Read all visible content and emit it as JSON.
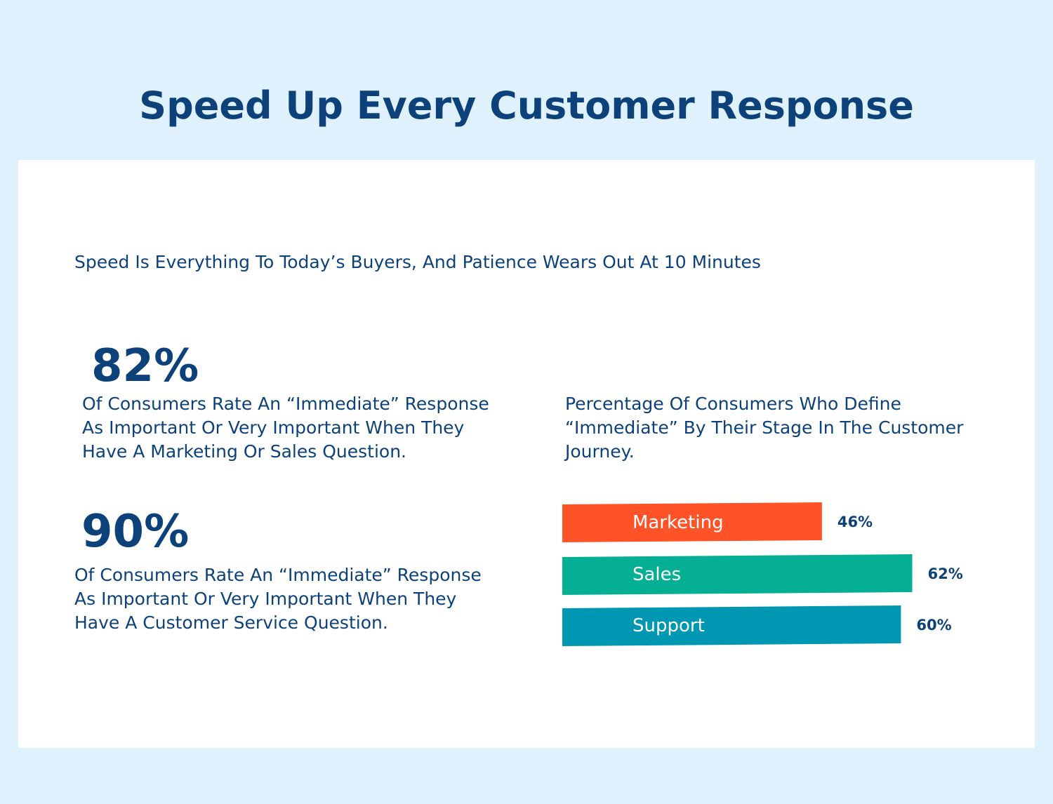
{
  "title": "Speed Up Every Customer Response",
  "intro": "Speed Is Everything To Today’s Buyers, And Patience Wears Out At 10 Minutes",
  "stats": [
    {
      "value": "82%",
      "text": "Of Consumers Rate An “Immediate” Response As Important Or Very Important When They Have A Marketing Or Sales Question."
    },
    {
      "value": "90%",
      "text": "Of Consumers Rate An “Immediate” Response As Important Or Very Important When They Have A Customer Service Question."
    }
  ],
  "colors": {
    "page_background": "#dff1fd",
    "card_background": "#ffffff",
    "text": "#0d4179",
    "bar_label": "#ffffff"
  },
  "chart_data": {
    "type": "bar",
    "orientation": "horizontal",
    "title": "Percentage Of Consumers Who Define “Immediate” By Their Stage In The Customer Journey.",
    "categories": [
      "Marketing",
      "Sales",
      "Support"
    ],
    "values": [
      46,
      62,
      60
    ],
    "value_labels": [
      "46%",
      "62%",
      "60%"
    ],
    "unit": "%",
    "bar_colors": [
      "#ff5227",
      "#05af93",
      "#0097b2"
    ],
    "axis": "none",
    "grid": false,
    "legend": "none"
  }
}
